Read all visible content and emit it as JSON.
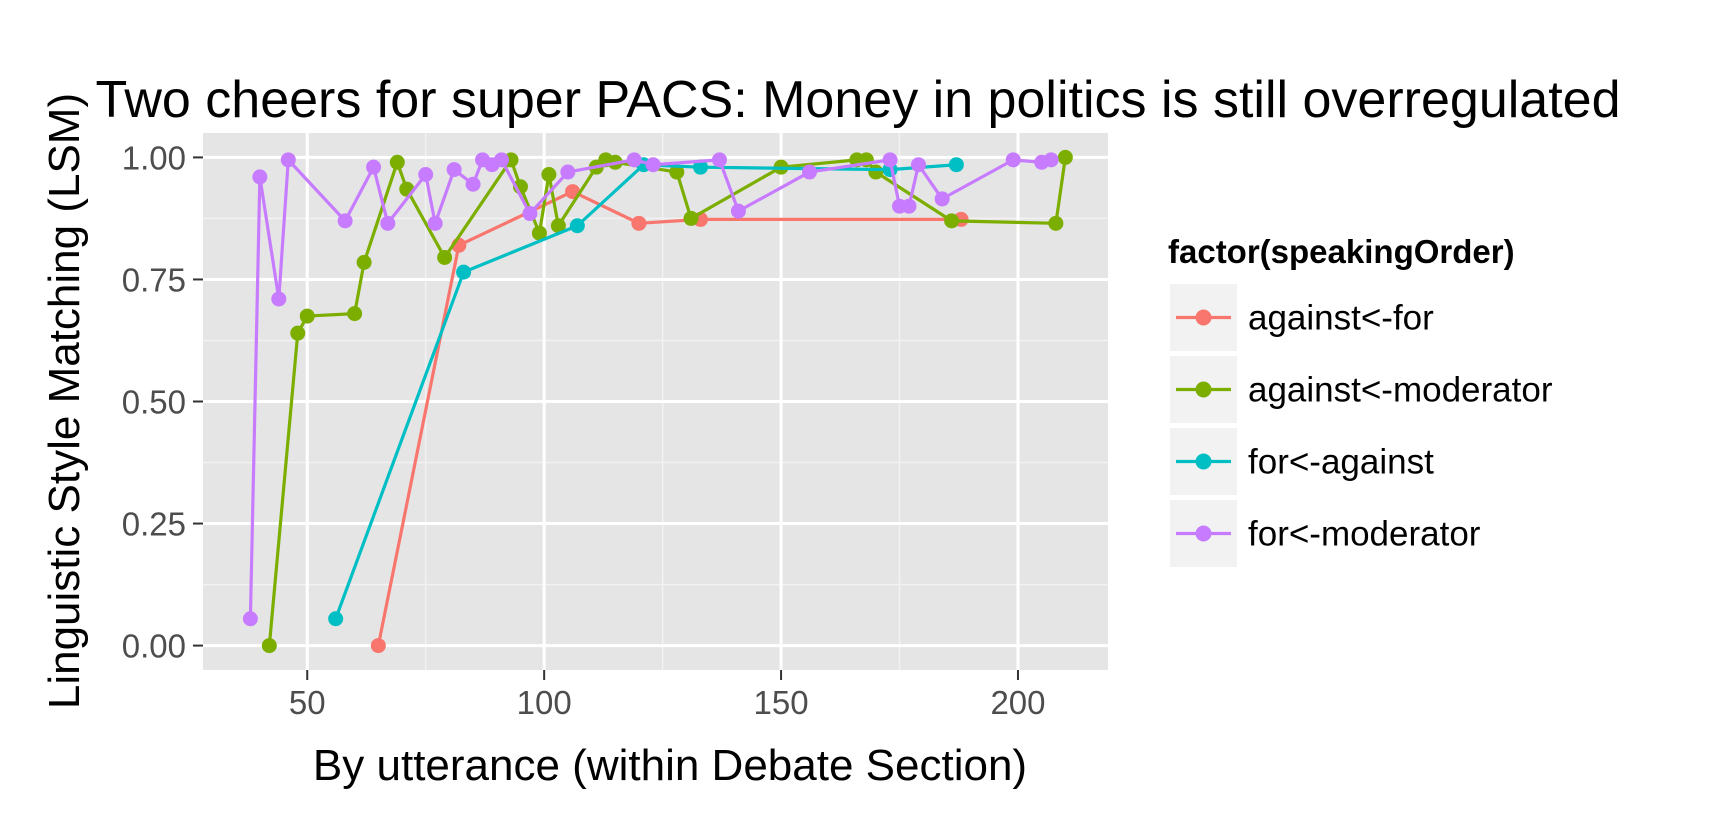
{
  "chart_data": {
    "type": "line",
    "title": "Two cheers for super PACS: Money in politics is still overregulated",
    "xlabel": "By utterance (within Debate Section)",
    "ylabel": "Linguistic Style Matching (LSM)",
    "xlim": [
      28,
      219
    ],
    "ylim": [
      -0.05,
      1.05
    ],
    "x_ticks": [
      50,
      100,
      150,
      200
    ],
    "x_tick_labels": [
      "50",
      "100",
      "150",
      "200"
    ],
    "y_ticks": [
      0,
      0.25,
      0.5,
      0.75,
      1
    ],
    "y_tick_labels": [
      "0.00",
      "0.25",
      "0.50",
      "0.75",
      "1.00"
    ],
    "grid": true,
    "legend": {
      "title": "factor(speakingOrder)",
      "placement": "right"
    },
    "series": [
      {
        "name": "against<-for",
        "color": "#F8766D",
        "x": [
          65,
          82,
          106,
          120,
          133,
          188
        ],
        "y": [
          0.0,
          0.82,
          0.93,
          0.865,
          0.873,
          0.873
        ]
      },
      {
        "name": "against<-moderator",
        "color": "#7CAE00",
        "x": [
          42,
          48,
          50,
          60,
          62,
          69,
          71,
          79,
          93,
          95,
          99,
          101,
          103,
          111,
          113,
          115,
          128,
          131,
          150,
          166,
          168,
          170,
          186,
          208,
          210
        ],
        "y": [
          0.0,
          0.64,
          0.675,
          0.68,
          0.785,
          0.99,
          0.935,
          0.795,
          0.995,
          0.94,
          0.845,
          0.965,
          0.86,
          0.98,
          0.995,
          0.99,
          0.97,
          0.875,
          0.98,
          0.995,
          0.995,
          0.97,
          0.87,
          0.865,
          1.0
        ]
      },
      {
        "name": "for<-against",
        "color": "#00BFC4",
        "x": [
          56,
          83,
          107,
          121,
          133,
          173,
          187
        ],
        "y": [
          0.055,
          0.765,
          0.86,
          0.985,
          0.98,
          0.975,
          0.985
        ]
      },
      {
        "name": "for<-moderator",
        "color": "#C77CFF",
        "x": [
          38,
          40,
          44,
          46,
          58,
          64,
          67,
          75,
          77,
          81,
          85,
          87,
          89,
          91,
          97,
          105,
          119,
          123,
          137,
          141,
          156,
          173,
          175,
          177,
          179,
          184,
          199,
          205,
          207
        ],
        "y": [
          0.055,
          0.96,
          0.71,
          0.995,
          0.87,
          0.98,
          0.865,
          0.965,
          0.865,
          0.975,
          0.945,
          0.995,
          0.985,
          0.995,
          0.885,
          0.97,
          0.995,
          0.985,
          0.995,
          0.89,
          0.97,
          0.995,
          0.9,
          0.9,
          0.985,
          0.915,
          0.995,
          0.99,
          0.995
        ]
      }
    ]
  }
}
